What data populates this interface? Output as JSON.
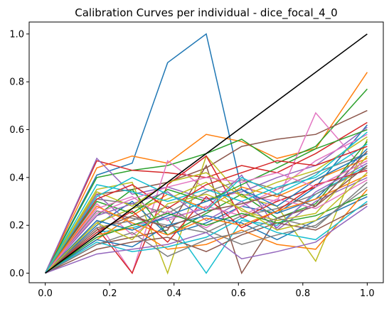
{
  "chart_data": {
    "type": "line",
    "title": "Calibration Curves per individual - dice_focal_4_0",
    "xlabel": "",
    "ylabel": "",
    "xlim": [
      -0.05,
      1.05
    ],
    "ylim": [
      -0.04,
      1.05
    ],
    "xticks": [
      0.0,
      0.2,
      0.4,
      0.6,
      0.8,
      1.0
    ],
    "yticks": [
      0.0,
      0.2,
      0.4,
      0.6,
      0.8,
      1.0
    ],
    "x_tick_labels": [
      "0.0",
      "0.2",
      "0.4",
      "0.6",
      "0.8",
      "1.0"
    ],
    "y_tick_labels": [
      "0.0",
      "0.2",
      "0.4",
      "0.6",
      "0.8",
      "1.0"
    ],
    "grid": false,
    "reference_line": {
      "x": [
        0,
        1
      ],
      "y": [
        0,
        1
      ],
      "color": "#000000"
    },
    "x": [
      0.0,
      0.16,
      0.27,
      0.38,
      0.5,
      0.61,
      0.72,
      0.84,
      1.0
    ],
    "palette": [
      "#1f77b4",
      "#ff7f0e",
      "#2ca02c",
      "#d62728",
      "#9467bd",
      "#8c564b",
      "#e377c2",
      "#7f7f7f",
      "#bcbd22",
      "#17becf"
    ],
    "series": [
      {
        "values": [
          0,
          0.41,
          0.46,
          0.88,
          1.0,
          0.35,
          0.25,
          0.36,
          0.62
        ]
      },
      {
        "values": [
          0,
          0.44,
          0.49,
          0.46,
          0.58,
          0.55,
          0.48,
          0.52,
          0.84
        ]
      },
      {
        "values": [
          0,
          0.4,
          0.43,
          0.45,
          0.5,
          0.56,
          0.46,
          0.53,
          0.77
        ]
      },
      {
        "values": [
          0,
          0.47,
          0.43,
          0.42,
          0.4,
          0.45,
          0.42,
          0.5,
          0.63
        ]
      },
      {
        "values": [
          0,
          0.48,
          0.33,
          0.36,
          0.31,
          0.34,
          0.4,
          0.45,
          0.61
        ]
      },
      {
        "values": [
          0,
          0.33,
          0.35,
          0.38,
          0.44,
          0.53,
          0.56,
          0.58,
          0.68
        ]
      },
      {
        "values": [
          0,
          0.22,
          0.0,
          0.47,
          0.35,
          0.33,
          0.3,
          0.67,
          0.42
        ]
      },
      {
        "values": [
          0,
          0.31,
          0.29,
          0.25,
          0.34,
          0.39,
          0.35,
          0.42,
          0.5
        ]
      },
      {
        "values": [
          0,
          0.35,
          0.38,
          0.0,
          0.49,
          0.32,
          0.28,
          0.05,
          0.56
        ]
      },
      {
        "values": [
          0,
          0.17,
          0.19,
          0.23,
          0.0,
          0.22,
          0.2,
          0.33,
          0.45
        ]
      },
      {
        "values": [
          0,
          0.2,
          0.3,
          0.16,
          0.21,
          0.28,
          0.25,
          0.31,
          0.52
        ]
      },
      {
        "values": [
          0,
          0.14,
          0.24,
          0.33,
          0.27,
          0.36,
          0.32,
          0.39,
          0.48
        ]
      },
      {
        "values": [
          0,
          0.24,
          0.35,
          0.16,
          0.25,
          0.33,
          0.23,
          0.29,
          0.55
        ]
      },
      {
        "values": [
          0,
          0.19,
          0.0,
          0.37,
          0.49,
          0.23,
          0.3,
          0.36,
          0.47
        ]
      },
      {
        "values": [
          0,
          0.33,
          0.2,
          0.23,
          0.27,
          0.41,
          0.18,
          0.3,
          0.4
        ]
      },
      {
        "values": [
          0,
          0.12,
          0.15,
          0.18,
          0.45,
          0.0,
          0.23,
          0.28,
          0.51
        ]
      },
      {
        "values": [
          0,
          0.29,
          0.16,
          0.26,
          0.19,
          0.28,
          0.35,
          0.47,
          0.58
        ]
      },
      {
        "values": [
          0,
          0.26,
          0.23,
          0.2,
          0.17,
          0.24,
          0.27,
          0.33,
          0.44
        ]
      },
      {
        "values": [
          0,
          0.21,
          0.27,
          0.31,
          0.38,
          0.26,
          0.22,
          0.25,
          0.49
        ]
      },
      {
        "values": [
          0,
          0.37,
          0.34,
          0.3,
          0.35,
          0.3,
          0.36,
          0.4,
          0.54
        ]
      },
      {
        "values": [
          0,
          0.14,
          0.11,
          0.2,
          0.24,
          0.21,
          0.14,
          0.22,
          0.32
        ]
      },
      {
        "values": [
          0,
          0.16,
          0.19,
          0.1,
          0.12,
          0.18,
          0.12,
          0.1,
          0.35
        ]
      },
      {
        "values": [
          0,
          0.3,
          0.25,
          0.35,
          0.3,
          0.37,
          0.44,
          0.52,
          0.6
        ]
      },
      {
        "values": [
          0,
          0.17,
          0.26,
          0.13,
          0.32,
          0.19,
          0.26,
          0.37,
          0.43
        ]
      },
      {
        "values": [
          0,
          0.24,
          0.29,
          0.34,
          0.22,
          0.3,
          0.19,
          0.34,
          0.46
        ]
      },
      {
        "values": [
          0,
          0.1,
          0.13,
          0.15,
          0.09,
          0.16,
          0.21,
          0.18,
          0.29
        ]
      },
      {
        "values": [
          0,
          0.27,
          0.32,
          0.22,
          0.28,
          0.24,
          0.31,
          0.27,
          0.39
        ]
      },
      {
        "values": [
          0,
          0.19,
          0.22,
          0.28,
          0.18,
          0.12,
          0.16,
          0.2,
          0.36
        ]
      },
      {
        "values": [
          0,
          0.34,
          0.28,
          0.38,
          0.42,
          0.32,
          0.38,
          0.43,
          0.57
        ]
      },
      {
        "values": [
          0,
          0.13,
          0.09,
          0.11,
          0.15,
          0.23,
          0.17,
          0.14,
          0.3
        ]
      },
      {
        "values": [
          0,
          0.22,
          0.18,
          0.24,
          0.3,
          0.35,
          0.28,
          0.39,
          0.5
        ]
      },
      {
        "values": [
          0,
          0.28,
          0.21,
          0.16,
          0.23,
          0.2,
          0.26,
          0.31,
          0.41
        ]
      },
      {
        "values": [
          0,
          0.15,
          0.2,
          0.25,
          0.2,
          0.25,
          0.21,
          0.24,
          0.33
        ]
      },
      {
        "values": [
          0,
          0.31,
          0.37,
          0.27,
          0.37,
          0.42,
          0.47,
          0.45,
          0.53
        ]
      },
      {
        "values": [
          0,
          0.08,
          0.1,
          0.12,
          0.17,
          0.06,
          0.09,
          0.13,
          0.28
        ]
      },
      {
        "values": [
          0,
          0.18,
          0.24,
          0.19,
          0.26,
          0.29,
          0.33,
          0.28,
          0.45
        ]
      },
      {
        "values": [
          0,
          0.25,
          0.31,
          0.36,
          0.4,
          0.38,
          0.42,
          0.36,
          0.47
        ]
      },
      {
        "values": [
          0,
          0.12,
          0.17,
          0.07,
          0.14,
          0.17,
          0.23,
          0.19,
          0.38
        ]
      },
      {
        "values": [
          0,
          0.21,
          0.14,
          0.29,
          0.33,
          0.27,
          0.18,
          0.22,
          0.42
        ]
      },
      {
        "values": [
          0,
          0.32,
          0.4,
          0.33,
          0.26,
          0.4,
          0.33,
          0.41,
          0.59
        ]
      }
    ]
  }
}
